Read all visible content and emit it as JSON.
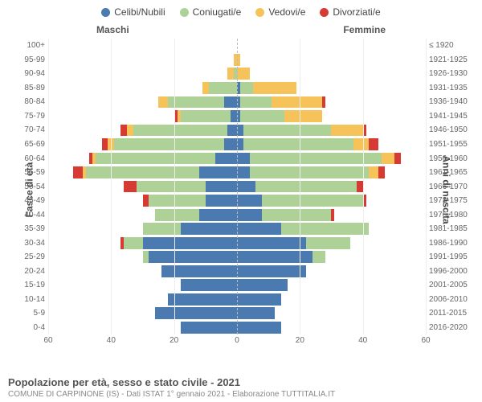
{
  "type": "population-pyramid",
  "title": "Popolazione per età, sesso e stato civile - 2021",
  "subtitle": "COMUNE DI CARPINONE (IS) - Dati ISTAT 1° gennaio 2021 - Elaborazione TUTTITALIA.IT",
  "legend": [
    {
      "label": "Celibi/Nubili",
      "color": "#4a7ab0"
    },
    {
      "label": "Coniugati/e",
      "color": "#aed198"
    },
    {
      "label": "Vedovi/e",
      "color": "#f6c35a"
    },
    {
      "label": "Divorziati/e",
      "color": "#d73a32"
    }
  ],
  "column_headers": {
    "left": "Maschi",
    "right": "Femmine"
  },
  "y_left_label": "Fasce di età",
  "y_right_label": "Anni di nascita",
  "x_axis": {
    "max": 60,
    "ticks": [
      60,
      40,
      20,
      0,
      20,
      40,
      60
    ]
  },
  "grid_color": "#eeeeee",
  "centerline_color": "#bbbbbb",
  "background_color": "#ffffff",
  "bar_gap_pct": 8,
  "label_fontsize": 10,
  "legend_fontsize": 12,
  "rows": [
    {
      "age": "100+",
      "year": "≤ 1920",
      "m": {
        "cel": 0,
        "con": 0,
        "ved": 0,
        "div": 0
      },
      "f": {
        "cel": 0,
        "con": 0,
        "ved": 0,
        "div": 0
      }
    },
    {
      "age": "95-99",
      "year": "1921-1925",
      "m": {
        "cel": 0,
        "con": 0,
        "ved": 1,
        "div": 0
      },
      "f": {
        "cel": 0,
        "con": 0,
        "ved": 1,
        "div": 0
      }
    },
    {
      "age": "90-94",
      "year": "1926-1930",
      "m": {
        "cel": 0,
        "con": 1,
        "ved": 2,
        "div": 0
      },
      "f": {
        "cel": 0,
        "con": 0,
        "ved": 4,
        "div": 0
      }
    },
    {
      "age": "85-89",
      "year": "1931-1935",
      "m": {
        "cel": 0,
        "con": 9,
        "ved": 2,
        "div": 0
      },
      "f": {
        "cel": 1,
        "con": 4,
        "ved": 14,
        "div": 0
      }
    },
    {
      "age": "80-84",
      "year": "1936-1940",
      "m": {
        "cel": 4,
        "con": 18,
        "ved": 3,
        "div": 0
      },
      "f": {
        "cel": 1,
        "con": 10,
        "ved": 16,
        "div": 1
      }
    },
    {
      "age": "75-79",
      "year": "1941-1945",
      "m": {
        "cel": 2,
        "con": 16,
        "ved": 1,
        "div": 1
      },
      "f": {
        "cel": 1,
        "con": 14,
        "ved": 12,
        "div": 0
      }
    },
    {
      "age": "70-74",
      "year": "1946-1950",
      "m": {
        "cel": 3,
        "con": 30,
        "ved": 2,
        "div": 2
      },
      "f": {
        "cel": 2,
        "con": 28,
        "ved": 10,
        "div": 1
      }
    },
    {
      "age": "65-69",
      "year": "1951-1955",
      "m": {
        "cel": 4,
        "con": 35,
        "ved": 2,
        "div": 2
      },
      "f": {
        "cel": 2,
        "con": 35,
        "ved": 5,
        "div": 3
      }
    },
    {
      "age": "60-64",
      "year": "1956-1960",
      "m": {
        "cel": 7,
        "con": 38,
        "ved": 1,
        "div": 1
      },
      "f": {
        "cel": 4,
        "con": 42,
        "ved": 4,
        "div": 2
      }
    },
    {
      "age": "55-59",
      "year": "1961-1965",
      "m": {
        "cel": 12,
        "con": 36,
        "ved": 1,
        "div": 3
      },
      "f": {
        "cel": 4,
        "con": 38,
        "ved": 3,
        "div": 2
      }
    },
    {
      "age": "50-54",
      "year": "1966-1970",
      "m": {
        "cel": 10,
        "con": 22,
        "ved": 0,
        "div": 4
      },
      "f": {
        "cel": 6,
        "con": 32,
        "ved": 0,
        "div": 2
      }
    },
    {
      "age": "45-49",
      "year": "1971-1975",
      "m": {
        "cel": 10,
        "con": 18,
        "ved": 0,
        "div": 2
      },
      "f": {
        "cel": 8,
        "con": 32,
        "ved": 0,
        "div": 1
      }
    },
    {
      "age": "40-44",
      "year": "1976-1980",
      "m": {
        "cel": 12,
        "con": 14,
        "ved": 0,
        "div": 0
      },
      "f": {
        "cel": 8,
        "con": 22,
        "ved": 0,
        "div": 1
      }
    },
    {
      "age": "35-39",
      "year": "1981-1985",
      "m": {
        "cel": 18,
        "con": 12,
        "ved": 0,
        "div": 0
      },
      "f": {
        "cel": 14,
        "con": 28,
        "ved": 0,
        "div": 0
      }
    },
    {
      "age": "30-34",
      "year": "1986-1990",
      "m": {
        "cel": 30,
        "con": 6,
        "ved": 0,
        "div": 1
      },
      "f": {
        "cel": 22,
        "con": 14,
        "ved": 0,
        "div": 0
      }
    },
    {
      "age": "25-29",
      "year": "1991-1995",
      "m": {
        "cel": 28,
        "con": 2,
        "ved": 0,
        "div": 0
      },
      "f": {
        "cel": 24,
        "con": 4,
        "ved": 0,
        "div": 0
      }
    },
    {
      "age": "20-24",
      "year": "1996-2000",
      "m": {
        "cel": 24,
        "con": 0,
        "ved": 0,
        "div": 0
      },
      "f": {
        "cel": 22,
        "con": 0,
        "ved": 0,
        "div": 0
      }
    },
    {
      "age": "15-19",
      "year": "2001-2005",
      "m": {
        "cel": 18,
        "con": 0,
        "ved": 0,
        "div": 0
      },
      "f": {
        "cel": 16,
        "con": 0,
        "ved": 0,
        "div": 0
      }
    },
    {
      "age": "10-14",
      "year": "2006-2010",
      "m": {
        "cel": 22,
        "con": 0,
        "ved": 0,
        "div": 0
      },
      "f": {
        "cel": 14,
        "con": 0,
        "ved": 0,
        "div": 0
      }
    },
    {
      "age": "5-9",
      "year": "2011-2015",
      "m": {
        "cel": 26,
        "con": 0,
        "ved": 0,
        "div": 0
      },
      "f": {
        "cel": 12,
        "con": 0,
        "ved": 0,
        "div": 0
      }
    },
    {
      "age": "0-4",
      "year": "2016-2020",
      "m": {
        "cel": 18,
        "con": 0,
        "ved": 0,
        "div": 0
      },
      "f": {
        "cel": 14,
        "con": 0,
        "ved": 0,
        "div": 0
      }
    }
  ]
}
